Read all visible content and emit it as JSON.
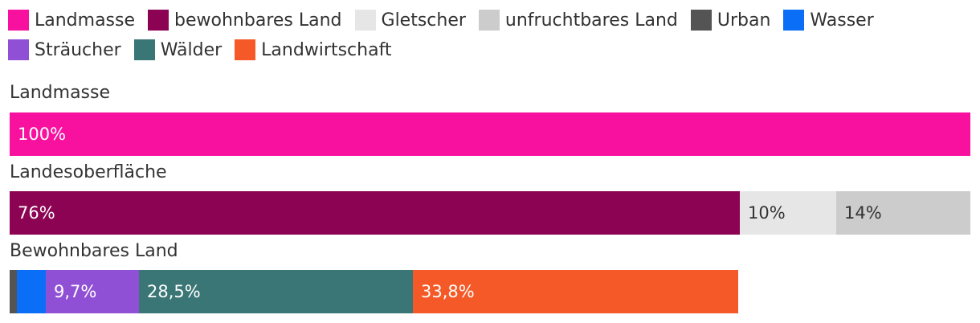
{
  "chart_data": {
    "type": "stacked-bar",
    "orientation": "horizontal",
    "scale_max_percent": 100,
    "legend": [
      {
        "key": "landmasse",
        "name": "Landmasse",
        "color": "#f7119e"
      },
      {
        "key": "bewohnbar",
        "name": "bewohnbares Land",
        "color": "#8c0353"
      },
      {
        "key": "gletscher",
        "name": "Gletscher",
        "color": "#e6e6e6"
      },
      {
        "key": "unfruchtbar",
        "name": "unfruchtbares Land",
        "color": "#cccccc"
      },
      {
        "key": "urban",
        "name": "Urban",
        "color": "#545454"
      },
      {
        "key": "wasser",
        "name": "Wasser",
        "color": "#0b6ef7"
      },
      {
        "key": "straeucher",
        "name": "Sträucher",
        "color": "#8f50d6"
      },
      {
        "key": "waelder",
        "name": "Wälder",
        "color": "#3b7676"
      },
      {
        "key": "landwirtschaft",
        "name": "Landwirtschaft",
        "color": "#f55927"
      }
    ],
    "rows": [
      {
        "label": "Landmasse",
        "segments": [
          {
            "key": "landmasse",
            "value": 100,
            "label": "100%",
            "label_color": "#ffffff"
          }
        ]
      },
      {
        "label": "Landesoberfläche",
        "segments": [
          {
            "key": "bewohnbar",
            "value": 76,
            "label": "76%",
            "label_color": "#ffffff"
          },
          {
            "key": "gletscher",
            "value": 10,
            "label": "10%",
            "label_color": "#333333"
          },
          {
            "key": "unfruchtbar",
            "value": 14,
            "label": "14%",
            "label_color": "#333333"
          }
        ]
      },
      {
        "label": "Bewohnbares Land",
        "segments": [
          {
            "key": "urban",
            "value": 0.76,
            "label": "",
            "label_color": "#ffffff"
          },
          {
            "key": "wasser",
            "value": 3.04,
            "label": "",
            "label_color": "#ffffff"
          },
          {
            "key": "straeucher",
            "value": 9.7,
            "label": "9,7%",
            "label_color": "#ffffff"
          },
          {
            "key": "waelder",
            "value": 28.5,
            "label": "28,5%",
            "label_color": "#ffffff"
          },
          {
            "key": "landwirtschaft",
            "value": 33.8,
            "label": "33,8%",
            "label_color": "#ffffff"
          }
        ]
      }
    ]
  }
}
